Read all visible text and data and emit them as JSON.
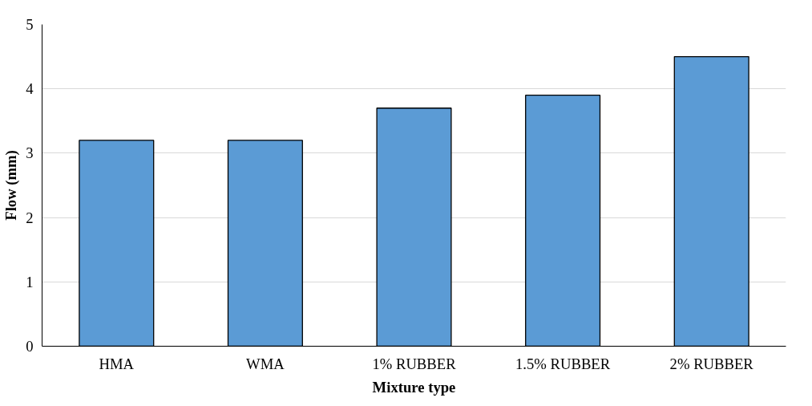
{
  "chart_data": {
    "type": "bar",
    "xlabel": "Mixture type",
    "ylabel": "Flow (mm)",
    "categories": [
      "HMA",
      "WMA",
      "1% RUBBER",
      "1.5% RUBBER",
      "2% RUBBER"
    ],
    "values": [
      3.2,
      3.2,
      3.7,
      3.9,
      4.5
    ],
    "color": "#5b9bd5",
    "ylim": [
      0,
      5
    ],
    "yticks": [
      0,
      1,
      2,
      3,
      4,
      5
    ],
    "grid": "y"
  }
}
